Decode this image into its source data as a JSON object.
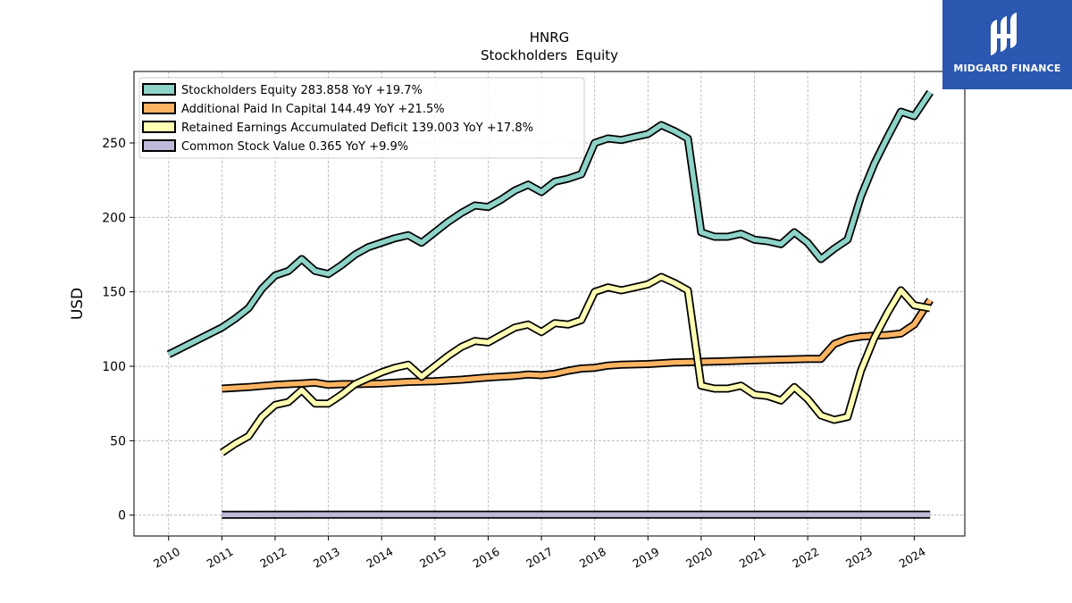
{
  "logo": {
    "text": "MIDGARD FINANCE",
    "icon": "midgard-logo-icon",
    "background": "#2b57b0"
  },
  "chart_data": {
    "type": "line",
    "title": "HNRG",
    "subtitle": "Stockholders  Equity",
    "xlabel": "",
    "ylabel": "USD",
    "xlim": [
      2009.35,
      2024.95
    ],
    "ylim": [
      -14,
      298
    ],
    "x_ticks": [
      2010,
      2011,
      2012,
      2013,
      2014,
      2015,
      2016,
      2017,
      2018,
      2019,
      2020,
      2021,
      2022,
      2023,
      2024
    ],
    "x_tick_labels": [
      "2010",
      "2011",
      "2012",
      "2013",
      "2014",
      "2015",
      "2016",
      "2017",
      "2018",
      "2019",
      "2020",
      "2021",
      "2022",
      "2023",
      "2024"
    ],
    "y_ticks": [
      0,
      50,
      100,
      150,
      200,
      250
    ],
    "y_tick_labels": [
      "0",
      "50",
      "100",
      "150",
      "200",
      "250"
    ],
    "grid": true,
    "legend_position": "top-left",
    "series": [
      {
        "name": "Stockholders Equity  283.858 YoY +19.7%",
        "color": "#8dd3c7",
        "points": [
          [
            2010.0,
            108
          ],
          [
            2011.0,
            126
          ],
          [
            2011.25,
            132
          ],
          [
            2011.5,
            139
          ],
          [
            2011.75,
            152
          ],
          [
            2012.0,
            161
          ],
          [
            2012.25,
            164
          ],
          [
            2012.5,
            172
          ],
          [
            2012.75,
            164
          ],
          [
            2013.0,
            162
          ],
          [
            2013.25,
            168
          ],
          [
            2013.5,
            175
          ],
          [
            2013.75,
            180
          ],
          [
            2014.0,
            183
          ],
          [
            2014.25,
            186
          ],
          [
            2014.5,
            188
          ],
          [
            2014.75,
            183
          ],
          [
            2015.0,
            190
          ],
          [
            2015.25,
            197
          ],
          [
            2015.5,
            203
          ],
          [
            2015.75,
            208
          ],
          [
            2016.0,
            207
          ],
          [
            2016.25,
            212
          ],
          [
            2016.5,
            218
          ],
          [
            2016.75,
            222
          ],
          [
            2017.0,
            217
          ],
          [
            2017.25,
            224
          ],
          [
            2017.5,
            226
          ],
          [
            2017.75,
            229
          ],
          [
            2018.0,
            250
          ],
          [
            2018.25,
            253
          ],
          [
            2018.5,
            252
          ],
          [
            2018.75,
            254
          ],
          [
            2019.0,
            256
          ],
          [
            2019.25,
            262
          ],
          [
            2019.5,
            258
          ],
          [
            2019.75,
            253
          ],
          [
            2020.0,
            190
          ],
          [
            2020.25,
            187
          ],
          [
            2020.5,
            187
          ],
          [
            2020.75,
            189
          ],
          [
            2021.0,
            185
          ],
          [
            2021.25,
            184
          ],
          [
            2021.5,
            182
          ],
          [
            2021.75,
            190
          ],
          [
            2022.0,
            183
          ],
          [
            2022.25,
            172
          ],
          [
            2022.5,
            179
          ],
          [
            2022.75,
            185
          ],
          [
            2023.0,
            214
          ],
          [
            2023.25,
            236
          ],
          [
            2023.5,
            254
          ],
          [
            2023.75,
            271
          ],
          [
            2024.0,
            268
          ],
          [
            2024.3,
            284
          ]
        ]
      },
      {
        "name": "Additional Paid In Capital  144.49 YoY +21.5%",
        "color": "#fdb462",
        "points": [
          [
            2011.0,
            85
          ],
          [
            2011.5,
            86
          ],
          [
            2012.0,
            87.5
          ],
          [
            2012.5,
            88.5
          ],
          [
            2012.75,
            89
          ],
          [
            2013.0,
            87.5
          ],
          [
            2013.25,
            88
          ],
          [
            2013.5,
            88
          ],
          [
            2014.0,
            88.5
          ],
          [
            2014.5,
            89.5
          ],
          [
            2015.0,
            90
          ],
          [
            2015.5,
            91
          ],
          [
            2016.0,
            92.5
          ],
          [
            2016.5,
            93.5
          ],
          [
            2016.75,
            94.5
          ],
          [
            2017.0,
            94
          ],
          [
            2017.25,
            95
          ],
          [
            2017.5,
            97
          ],
          [
            2017.75,
            98.5
          ],
          [
            2018.0,
            99
          ],
          [
            2018.25,
            100.5
          ],
          [
            2018.5,
            101
          ],
          [
            2019.0,
            101.5
          ],
          [
            2019.5,
            102.5
          ],
          [
            2020.0,
            103
          ],
          [
            2020.5,
            103.5
          ],
          [
            2021.0,
            104
          ],
          [
            2021.5,
            104.5
          ],
          [
            2022.0,
            105
          ],
          [
            2022.25,
            105
          ],
          [
            2022.5,
            115
          ],
          [
            2022.75,
            118.5
          ],
          [
            2023.0,
            120
          ],
          [
            2023.25,
            120.5
          ],
          [
            2023.5,
            121
          ],
          [
            2023.75,
            122
          ],
          [
            2024.0,
            128
          ],
          [
            2024.3,
            144.5
          ]
        ]
      },
      {
        "name": "Retained Earnings Accumulated Deficit  139.003 YoY +17.8%",
        "color": "#ffffb3",
        "points": [
          [
            2011.0,
            42
          ],
          [
            2011.25,
            48
          ],
          [
            2011.5,
            53
          ],
          [
            2011.75,
            66
          ],
          [
            2012.0,
            74
          ],
          [
            2012.25,
            76
          ],
          [
            2012.5,
            84
          ],
          [
            2012.75,
            75
          ],
          [
            2013.0,
            75
          ],
          [
            2013.25,
            81
          ],
          [
            2013.5,
            88
          ],
          [
            2013.75,
            92
          ],
          [
            2014.0,
            96
          ],
          [
            2014.25,
            99
          ],
          [
            2014.5,
            101
          ],
          [
            2014.75,
            93
          ],
          [
            2015.0,
            100
          ],
          [
            2015.25,
            107
          ],
          [
            2015.5,
            113
          ],
          [
            2015.75,
            117
          ],
          [
            2016.0,
            116
          ],
          [
            2016.25,
            121
          ],
          [
            2016.5,
            126
          ],
          [
            2016.75,
            128
          ],
          [
            2017.0,
            123
          ],
          [
            2017.25,
            129
          ],
          [
            2017.5,
            128
          ],
          [
            2017.75,
            131
          ],
          [
            2018.0,
            150
          ],
          [
            2018.25,
            153
          ],
          [
            2018.5,
            151
          ],
          [
            2018.75,
            153
          ],
          [
            2019.0,
            155
          ],
          [
            2019.25,
            160
          ],
          [
            2019.5,
            156
          ],
          [
            2019.75,
            151
          ],
          [
            2020.0,
            87
          ],
          [
            2020.25,
            85
          ],
          [
            2020.5,
            85
          ],
          [
            2020.75,
            87
          ],
          [
            2021.0,
            81
          ],
          [
            2021.25,
            80
          ],
          [
            2021.5,
            77
          ],
          [
            2021.75,
            86
          ],
          [
            2022.0,
            78
          ],
          [
            2022.25,
            67
          ],
          [
            2022.5,
            64
          ],
          [
            2022.75,
            66
          ],
          [
            2023.0,
            97
          ],
          [
            2023.25,
            119
          ],
          [
            2023.5,
            136
          ],
          [
            2023.75,
            151
          ],
          [
            2024.0,
            141
          ],
          [
            2024.3,
            139
          ]
        ]
      },
      {
        "name": "Common Stock Value  0.365 YoY +9.9%",
        "color": "#bebada",
        "points": [
          [
            2011.0,
            0.3
          ],
          [
            2024.3,
            0.365
          ]
        ]
      }
    ]
  }
}
